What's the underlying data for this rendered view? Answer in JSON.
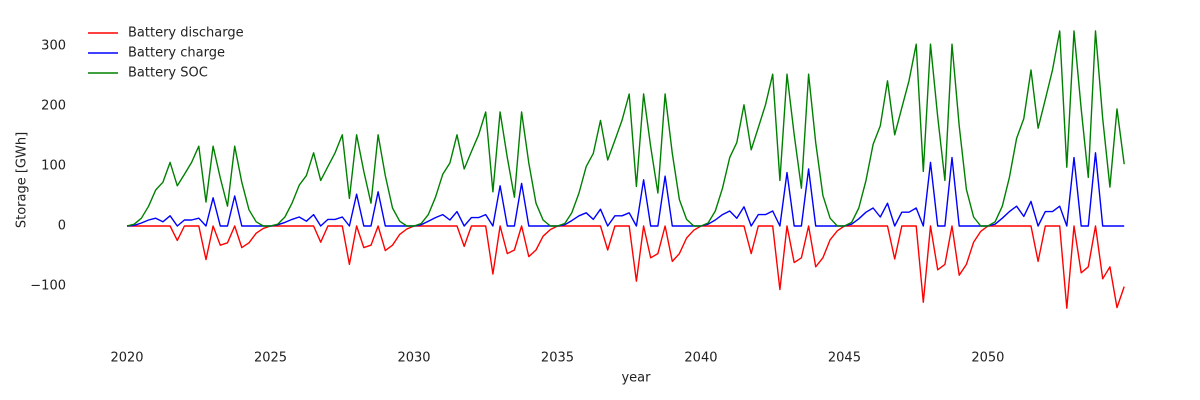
{
  "chart_data": {
    "type": "line",
    "xlabel": "year",
    "ylabel": "Storage [GWh]",
    "xlim": [
      2018.5,
      2055.3
    ],
    "xticks": [
      2020,
      2025,
      2030,
      2035,
      2040,
      2045,
      2050
    ],
    "ylim": [
      -190,
      345
    ],
    "yticks": [
      {
        "value": -100,
        "label": "−100"
      },
      0,
      100,
      200,
      300
    ],
    "grid": false,
    "legend": "upper-left",
    "x": [
      2020,
      2020.25,
      2020.5,
      2020.75,
      2021,
      2021.25,
      2021.5,
      2021.75,
      2022,
      2022.25,
      2022.5,
      2022.75,
      2023,
      2023.25,
      2023.5,
      2023.75,
      2024,
      2024.25,
      2024.5,
      2024.75,
      2025,
      2025.25,
      2025.5,
      2025.75,
      2026,
      2026.25,
      2026.5,
      2026.75,
      2027,
      2027.25,
      2027.5,
      2027.75,
      2028,
      2028.25,
      2028.5,
      2028.75,
      2029,
      2029.25,
      2029.5,
      2029.75,
      2030,
      2030.25,
      2030.5,
      2030.75,
      2031,
      2031.25,
      2031.5,
      2031.75,
      2032,
      2032.25,
      2032.5,
      2032.75,
      2033,
      2033.25,
      2033.5,
      2033.75,
      2034,
      2034.25,
      2034.5,
      2034.75,
      2035,
      2035.25,
      2035.5,
      2035.75,
      2036,
      2036.25,
      2036.5,
      2036.75,
      2037,
      2037.25,
      2037.5,
      2037.75,
      2038,
      2038.25,
      2038.5,
      2038.75,
      2039,
      2039.25,
      2039.5,
      2039.75,
      2040,
      2040.25,
      2040.5,
      2040.75,
      2041,
      2041.25,
      2041.5,
      2041.75,
      2042,
      2042.25,
      2042.5,
      2042.75,
      2043,
      2043.25,
      2043.5,
      2043.75,
      2044,
      2044.25,
      2044.5,
      2044.75,
      2045,
      2045.25,
      2045.5,
      2045.75,
      2046,
      2046.25,
      2046.5,
      2046.75,
      2047,
      2047.25,
      2047.5,
      2047.75,
      2048,
      2048.25,
      2048.5,
      2048.75,
      2049,
      2049.25,
      2049.5,
      2049.75,
      2050,
      2050.25,
      2050.5,
      2050.75,
      2051,
      2051.25,
      2051.5,
      2051.75,
      2052,
      2052.25,
      2052.5,
      2052.75,
      2053,
      2053.25,
      2053.5,
      2053.75,
      2054,
      2054.25,
      2054.5,
      2054.75
    ],
    "series": [
      {
        "name": "Battery discharge",
        "color": "#ff0000",
        "values": [
          0,
          0,
          0,
          0,
          0,
          0,
          0,
          -24,
          0,
          0,
          0,
          -56,
          0,
          -32,
          -28,
          0,
          -36,
          -28,
          -12,
          -4,
          0,
          0,
          0,
          0,
          0,
          0,
          0,
          -27,
          0,
          0,
          0,
          -64,
          0,
          -36,
          -32,
          0,
          -41,
          -32,
          -14,
          -5,
          0,
          0,
          0,
          0,
          0,
          0,
          0,
          -34,
          0,
          0,
          0,
          -80,
          0,
          -46,
          -40,
          0,
          -51,
          -40,
          -17,
          -6,
          0,
          0,
          0,
          0,
          0,
          0,
          0,
          -40,
          0,
          0,
          0,
          -92,
          0,
          -53,
          -46,
          0,
          -59,
          -46,
          -20,
          -7,
          0,
          0,
          0,
          0,
          0,
          0,
          0,
          -46,
          0,
          0,
          0,
          -106,
          0,
          -61,
          -53,
          0,
          -68,
          -53,
          -23,
          -8,
          0,
          0,
          0,
          0,
          0,
          0,
          0,
          -55,
          0,
          0,
          0,
          -127,
          0,
          -73,
          -64,
          0,
          -82,
          -64,
          -27,
          -9,
          0,
          0,
          0,
          0,
          0,
          0,
          0,
          -59,
          0,
          0,
          0,
          -137,
          0,
          -78,
          -68,
          0,
          -88,
          -68,
          -136,
          -101
        ]
      },
      {
        "name": "Battery charge",
        "color": "#0000ff",
        "values": [
          0,
          1,
          5,
          10,
          13,
          7,
          17,
          0,
          10,
          10,
          13,
          0,
          47,
          0,
          0,
          50,
          0,
          0,
          0,
          0,
          0,
          2,
          6,
          11,
          15,
          8,
          19,
          0,
          11,
          11,
          15,
          0,
          53,
          0,
          0,
          57,
          0,
          0,
          0,
          0,
          0,
          2,
          8,
          14,
          19,
          10,
          24,
          0,
          14,
          14,
          19,
          0,
          67,
          0,
          0,
          71,
          0,
          0,
          0,
          0,
          0,
          2,
          9,
          17,
          22,
          11,
          28,
          0,
          17,
          17,
          22,
          0,
          77,
          0,
          0,
          83,
          0,
          0,
          0,
          0,
          0,
          3,
          10,
          19,
          25,
          13,
          32,
          0,
          19,
          19,
          25,
          0,
          89,
          0,
          0,
          95,
          0,
          0,
          0,
          0,
          0,
          3,
          12,
          23,
          30,
          15,
          38,
          0,
          23,
          23,
          30,
          0,
          106,
          0,
          0,
          114,
          0,
          0,
          0,
          0,
          0,
          3,
          13,
          24,
          33,
          16,
          41,
          0,
          24,
          24,
          33,
          0,
          114,
          0,
          0,
          122,
          0,
          0,
          0,
          0
        ]
      },
      {
        "name": "Battery SOC",
        "color": "#008000",
        "values": [
          0,
          3,
          13,
          33,
          60,
          73,
          106,
          67,
          86,
          106,
          133,
          40,
          133,
          80,
          33,
          133,
          73,
          27,
          7,
          0,
          0,
          3,
          15,
          38,
          68,
          84,
          122,
          76,
          99,
          122,
          152,
          46,
          152,
          91,
          38,
          152,
          84,
          30,
          8,
          0,
          0,
          4,
          19,
          48,
          86,
          105,
          152,
          95,
          124,
          152,
          190,
          57,
          190,
          114,
          48,
          190,
          105,
          38,
          10,
          0,
          0,
          4,
          22,
          55,
          99,
          121,
          176,
          110,
          143,
          176,
          220,
          66,
          220,
          132,
          55,
          220,
          121,
          44,
          11,
          0,
          0,
          5,
          25,
          63,
          114,
          139,
          202,
          127,
          164,
          202,
          253,
          76,
          253,
          152,
          63,
          253,
          139,
          51,
          13,
          0,
          0,
          6,
          30,
          76,
          136,
          167,
          242,
          152,
          197,
          242,
          303,
          91,
          303,
          182,
          76,
          303,
          167,
          61,
          15,
          0,
          0,
          7,
          33,
          81,
          146,
          179,
          260,
          163,
          211,
          260,
          325,
          98,
          325,
          195,
          81,
          325,
          179,
          65,
          195,
          103
        ]
      }
    ]
  }
}
